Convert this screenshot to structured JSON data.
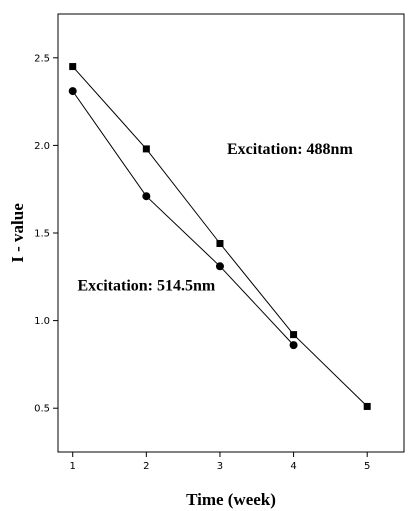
{
  "chart_data": {
    "type": "line",
    "xlabel": "Time (week)",
    "ylabel": "I - value",
    "xlim": [
      0.8,
      5.5
    ],
    "ylim": [
      0.25,
      2.75
    ],
    "x_ticks": [
      1,
      2,
      3,
      4,
      5
    ],
    "y_ticks": [
      0.5,
      1.0,
      1.5,
      2.0,
      2.5
    ],
    "x_tick_labels": [
      "1",
      "2",
      "3",
      "4",
      "5"
    ],
    "y_tick_labels": [
      "0.5",
      "1.0",
      "1.5",
      "2.0",
      "2.5"
    ],
    "grid": false,
    "series": [
      {
        "name": "Excitation: 488nm",
        "marker": "square",
        "color": "#000000",
        "x": [
          1,
          2,
          3,
          4,
          5
        ],
        "y": [
          2.45,
          1.98,
          1.44,
          0.92,
          0.51
        ]
      },
      {
        "name": "Excitation: 514.5nm",
        "marker": "circle",
        "color": "#000000",
        "x": [
          1,
          2,
          3,
          4
        ],
        "y": [
          2.31,
          1.71,
          1.31,
          0.86
        ]
      }
    ],
    "annotations": [
      {
        "text": "Excitation: 488nm",
        "x": 3.95,
        "y": 1.98
      },
      {
        "text": "Excitation: 514.5nm",
        "x": 2.0,
        "y": 1.2
      }
    ]
  }
}
